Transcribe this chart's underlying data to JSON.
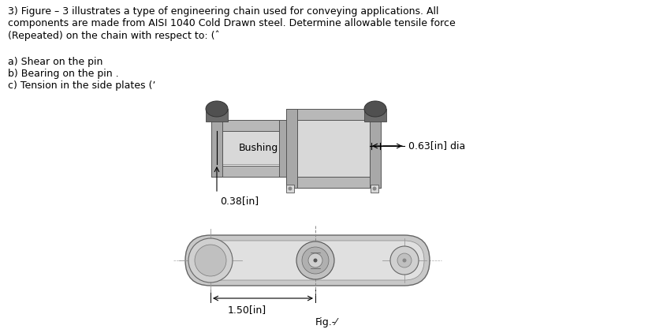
{
  "background_color": "#ffffff",
  "title_text": "3) Figure – 3 illustrates a type of engineering chain used for conveying applications. All\ncomponents are made from AISI 1040 Cold Drawn steel. Determine allowable tensile force\n(Repeated) on the chain with respect to: (ˆ",
  "items_text": "a) Shear on the pin\nb) Bearing on the pin .\nc) Tension in the side plates (ʼ",
  "label_bushing": "Bushing",
  "label_dia": "0.63[in] dia",
  "label_038": "0.38[in]",
  "label_150": "1.50[in]",
  "label_fig": "Fig.-⁄",
  "gray_light": "#c8c8c8",
  "gray_lighter": "#d8d8d8",
  "gray_mid": "#a8a8a8",
  "gray_dark": "#6a6a6a",
  "gray_plate": "#b8b8b8",
  "gray_vdark": "#505050",
  "text_color": "#000000",
  "font_size_title": 9,
  "font_size_label": 9
}
